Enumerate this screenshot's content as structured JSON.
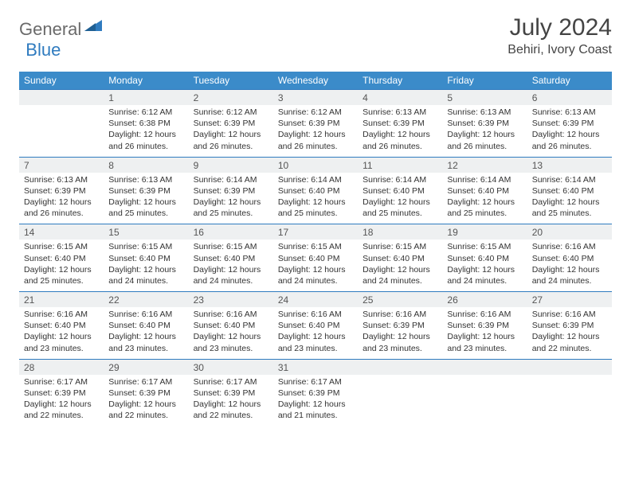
{
  "logo": {
    "text1": "General",
    "text2": "Blue"
  },
  "title": "July 2024",
  "location": "Behiri, Ivory Coast",
  "colors": {
    "header_bg": "#3b8bc9",
    "header_text": "#ffffff",
    "daynum_bg": "#eef0f1",
    "row_border": "#2f7bbf",
    "body_text": "#333333",
    "logo_gray": "#6a6a6a",
    "logo_blue": "#2f7bbf"
  },
  "weekdays": [
    "Sunday",
    "Monday",
    "Tuesday",
    "Wednesday",
    "Thursday",
    "Friday",
    "Saturday"
  ],
  "weeks": [
    [
      null,
      {
        "n": "1",
        "sr": "6:12 AM",
        "ss": "6:38 PM",
        "dl": "12 hours and 26 minutes."
      },
      {
        "n": "2",
        "sr": "6:12 AM",
        "ss": "6:39 PM",
        "dl": "12 hours and 26 minutes."
      },
      {
        "n": "3",
        "sr": "6:12 AM",
        "ss": "6:39 PM",
        "dl": "12 hours and 26 minutes."
      },
      {
        "n": "4",
        "sr": "6:13 AM",
        "ss": "6:39 PM",
        "dl": "12 hours and 26 minutes."
      },
      {
        "n": "5",
        "sr": "6:13 AM",
        "ss": "6:39 PM",
        "dl": "12 hours and 26 minutes."
      },
      {
        "n": "6",
        "sr": "6:13 AM",
        "ss": "6:39 PM",
        "dl": "12 hours and 26 minutes."
      }
    ],
    [
      {
        "n": "7",
        "sr": "6:13 AM",
        "ss": "6:39 PM",
        "dl": "12 hours and 26 minutes."
      },
      {
        "n": "8",
        "sr": "6:13 AM",
        "ss": "6:39 PM",
        "dl": "12 hours and 25 minutes."
      },
      {
        "n": "9",
        "sr": "6:14 AM",
        "ss": "6:39 PM",
        "dl": "12 hours and 25 minutes."
      },
      {
        "n": "10",
        "sr": "6:14 AM",
        "ss": "6:40 PM",
        "dl": "12 hours and 25 minutes."
      },
      {
        "n": "11",
        "sr": "6:14 AM",
        "ss": "6:40 PM",
        "dl": "12 hours and 25 minutes."
      },
      {
        "n": "12",
        "sr": "6:14 AM",
        "ss": "6:40 PM",
        "dl": "12 hours and 25 minutes."
      },
      {
        "n": "13",
        "sr": "6:14 AM",
        "ss": "6:40 PM",
        "dl": "12 hours and 25 minutes."
      }
    ],
    [
      {
        "n": "14",
        "sr": "6:15 AM",
        "ss": "6:40 PM",
        "dl": "12 hours and 25 minutes."
      },
      {
        "n": "15",
        "sr": "6:15 AM",
        "ss": "6:40 PM",
        "dl": "12 hours and 24 minutes."
      },
      {
        "n": "16",
        "sr": "6:15 AM",
        "ss": "6:40 PM",
        "dl": "12 hours and 24 minutes."
      },
      {
        "n": "17",
        "sr": "6:15 AM",
        "ss": "6:40 PM",
        "dl": "12 hours and 24 minutes."
      },
      {
        "n": "18",
        "sr": "6:15 AM",
        "ss": "6:40 PM",
        "dl": "12 hours and 24 minutes."
      },
      {
        "n": "19",
        "sr": "6:15 AM",
        "ss": "6:40 PM",
        "dl": "12 hours and 24 minutes."
      },
      {
        "n": "20",
        "sr": "6:16 AM",
        "ss": "6:40 PM",
        "dl": "12 hours and 24 minutes."
      }
    ],
    [
      {
        "n": "21",
        "sr": "6:16 AM",
        "ss": "6:40 PM",
        "dl": "12 hours and 23 minutes."
      },
      {
        "n": "22",
        "sr": "6:16 AM",
        "ss": "6:40 PM",
        "dl": "12 hours and 23 minutes."
      },
      {
        "n": "23",
        "sr": "6:16 AM",
        "ss": "6:40 PM",
        "dl": "12 hours and 23 minutes."
      },
      {
        "n": "24",
        "sr": "6:16 AM",
        "ss": "6:40 PM",
        "dl": "12 hours and 23 minutes."
      },
      {
        "n": "25",
        "sr": "6:16 AM",
        "ss": "6:39 PM",
        "dl": "12 hours and 23 minutes."
      },
      {
        "n": "26",
        "sr": "6:16 AM",
        "ss": "6:39 PM",
        "dl": "12 hours and 23 minutes."
      },
      {
        "n": "27",
        "sr": "6:16 AM",
        "ss": "6:39 PM",
        "dl": "12 hours and 22 minutes."
      }
    ],
    [
      {
        "n": "28",
        "sr": "6:17 AM",
        "ss": "6:39 PM",
        "dl": "12 hours and 22 minutes."
      },
      {
        "n": "29",
        "sr": "6:17 AM",
        "ss": "6:39 PM",
        "dl": "12 hours and 22 minutes."
      },
      {
        "n": "30",
        "sr": "6:17 AM",
        "ss": "6:39 PM",
        "dl": "12 hours and 22 minutes."
      },
      {
        "n": "31",
        "sr": "6:17 AM",
        "ss": "6:39 PM",
        "dl": "12 hours and 21 minutes."
      },
      null,
      null,
      null
    ]
  ],
  "labels": {
    "sunrise": "Sunrise:",
    "sunset": "Sunset:",
    "daylight": "Daylight:"
  }
}
